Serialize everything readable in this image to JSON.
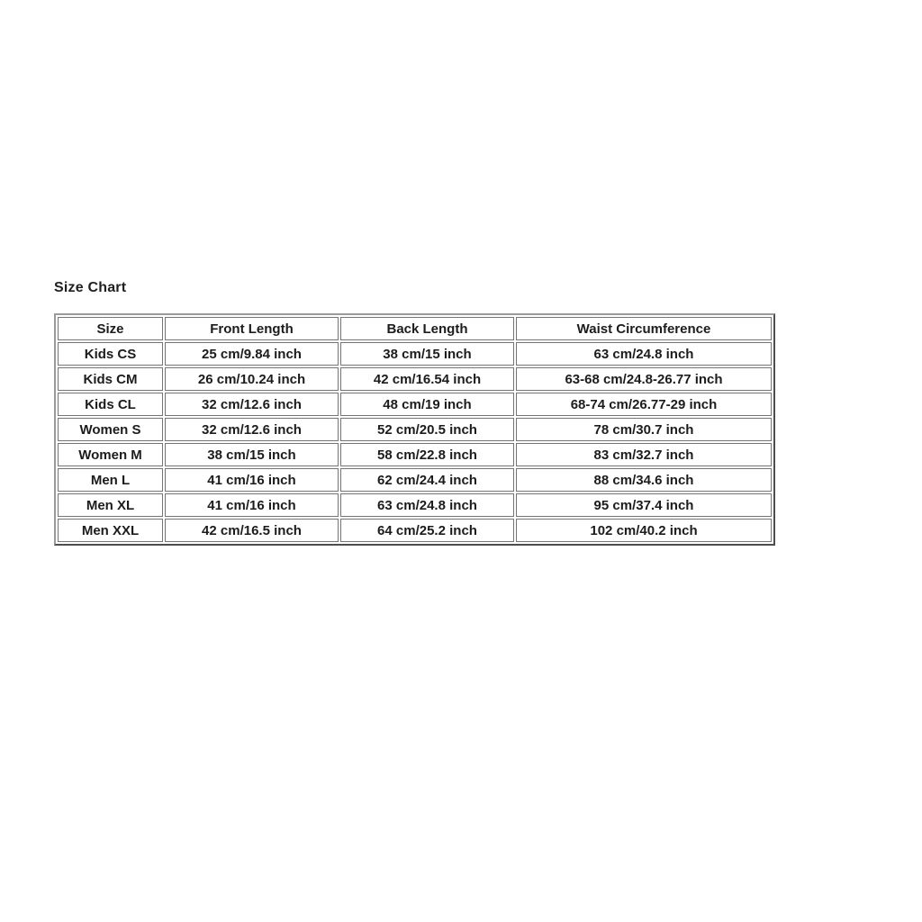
{
  "title": "Size Chart",
  "table": {
    "headers": [
      "Size",
      "Front Length",
      "Back Length",
      "Waist Circumference"
    ],
    "rows": [
      [
        "Kids CS",
        "25 cm/9.84 inch",
        "38 cm/15 inch",
        "63 cm/24.8 inch"
      ],
      [
        "Kids CM",
        "26 cm/10.24 inch",
        "42 cm/16.54 inch",
        "63-68 cm/24.8-26.77 inch"
      ],
      [
        "Kids CL",
        "32 cm/12.6 inch",
        "48 cm/19 inch",
        "68-74 cm/26.77-29 inch"
      ],
      [
        "Women S",
        "32 cm/12.6 inch",
        "52 cm/20.5 inch",
        "78 cm/30.7 inch"
      ],
      [
        "Women M",
        "38 cm/15 inch",
        "58 cm/22.8 inch",
        "83 cm/32.7 inch"
      ],
      [
        "Men L",
        "41 cm/16 inch",
        "62 cm/24.4 inch",
        "88 cm/34.6 inch"
      ],
      [
        "Men XL",
        "41 cm/16 inch",
        "63 cm/24.8 inch",
        "95 cm/37.4 inch"
      ],
      [
        "Men XXL",
        "42 cm/16.5 inch",
        "64 cm/25.2 inch",
        "102 cm/40.2 inch"
      ]
    ]
  },
  "colors": {
    "background": "#ffffff",
    "text": "#1c1c1c",
    "cell_border": "#757575",
    "outer_border_dark": "#4e4e4e",
    "outer_border_light": "#9a9a9a"
  }
}
